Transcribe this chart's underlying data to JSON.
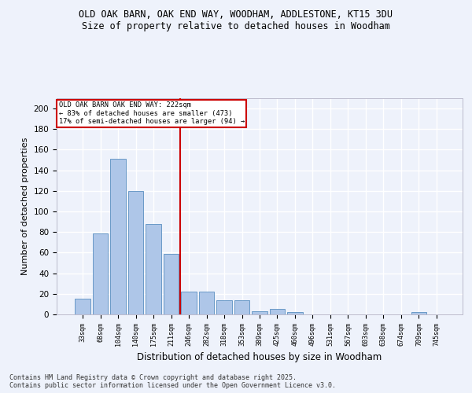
{
  "title1": "OLD OAK BARN, OAK END WAY, WOODHAM, ADDLESTONE, KT15 3DU",
  "title2": "Size of property relative to detached houses in Woodham",
  "xlabel": "Distribution of detached houses by size in Woodham",
  "ylabel": "Number of detached properties",
  "bar_labels": [
    "33sqm",
    "68sqm",
    "104sqm",
    "140sqm",
    "175sqm",
    "211sqm",
    "246sqm",
    "282sqm",
    "318sqm",
    "353sqm",
    "389sqm",
    "425sqm",
    "460sqm",
    "496sqm",
    "531sqm",
    "567sqm",
    "603sqm",
    "638sqm",
    "674sqm",
    "709sqm",
    "745sqm"
  ],
  "bar_values": [
    15,
    79,
    151,
    120,
    88,
    59,
    22,
    22,
    14,
    14,
    3,
    5,
    2,
    0,
    0,
    0,
    0,
    0,
    0,
    2,
    0
  ],
  "bar_color": "#aec6e8",
  "bar_edge_color": "#5a8fc0",
  "vline_x": 5.5,
  "vline_color": "#cc0000",
  "annotation_text": "OLD OAK BARN OAK END WAY: 222sqm\n← 83% of detached houses are smaller (473)\n17% of semi-detached houses are larger (94) →",
  "annotation_box_color": "#cc0000",
  "ylim": [
    0,
    210
  ],
  "yticks": [
    0,
    20,
    40,
    60,
    80,
    100,
    120,
    140,
    160,
    180,
    200
  ],
  "background_color": "#eef2fb",
  "footer_text": "Contains HM Land Registry data © Crown copyright and database right 2025.\nContains public sector information licensed under the Open Government Licence v3.0.",
  "grid_color": "#ffffff"
}
